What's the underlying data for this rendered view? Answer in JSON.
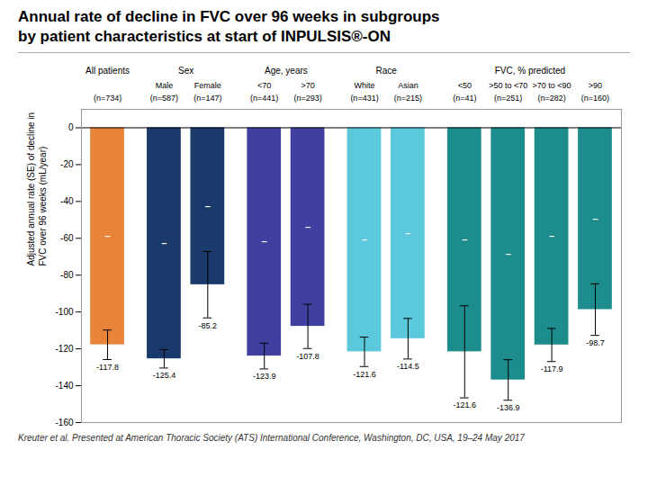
{
  "chart_data": {
    "type": "bar",
    "title": "Annual rate of decline in FVC over 96 weeks in subgroups",
    "subtitle": "by patient characteristics at start of INPULSIS®-ON",
    "ylabel": "Adjusted annual rate (SE) of decline in\nFVC over 96 weeks (mL/year)",
    "caption": "Kreuter  et al. Presented at American Thoracic Society (ATS) International Conference, Washington, DC, USA, 19–24 May 2017",
    "categories": [
      null,
      "Male",
      "Female",
      "<70",
      ">70",
      "White",
      "Asian",
      "<50",
      ">50 to <70",
      ">70 to <90",
      ">90"
    ],
    "n_labels": [
      "(n=734)",
      "(n=587)",
      "(n=147)",
      "(n=441)",
      "(n=293)",
      "(n=431)",
      "(n=215)",
      "(n=41)",
      "(n=251)",
      "(n=282)",
      "(n=160)"
    ],
    "groups": [
      "All patients",
      "Sex",
      "Sex",
      "Age, years",
      "Age, years",
      "Race",
      "Race",
      "FVC, % predicted",
      "FVC, % predicted",
      "FVC, % predicted",
      "FVC, % predicted"
    ],
    "values": [
      -117.8,
      -125.4,
      -85.2,
      -123.9,
      -107.8,
      -121.6,
      -114.5,
      -121.6,
      -136.9,
      -117.9,
      -98.7
    ],
    "errors": [
      8,
      5,
      18,
      7,
      12,
      8,
      11,
      25,
      11,
      9,
      14
    ],
    "colors": [
      "#E8843A",
      "#1A3A6B",
      "#1A3A6B",
      "#4040A0",
      "#4040A0",
      "#5BC8DC",
      "#5BC8DC",
      "#1C8C8C",
      "#1C8C8C",
      "#1C8C8C",
      "#1C8C8C"
    ],
    "ylim": [
      -160,
      10
    ],
    "yticks": [
      0,
      -20,
      -40,
      -60,
      -80,
      -100,
      -120,
      -140,
      -160
    ],
    "data_labels": true,
    "mid_label": "–",
    "grid": false
  }
}
